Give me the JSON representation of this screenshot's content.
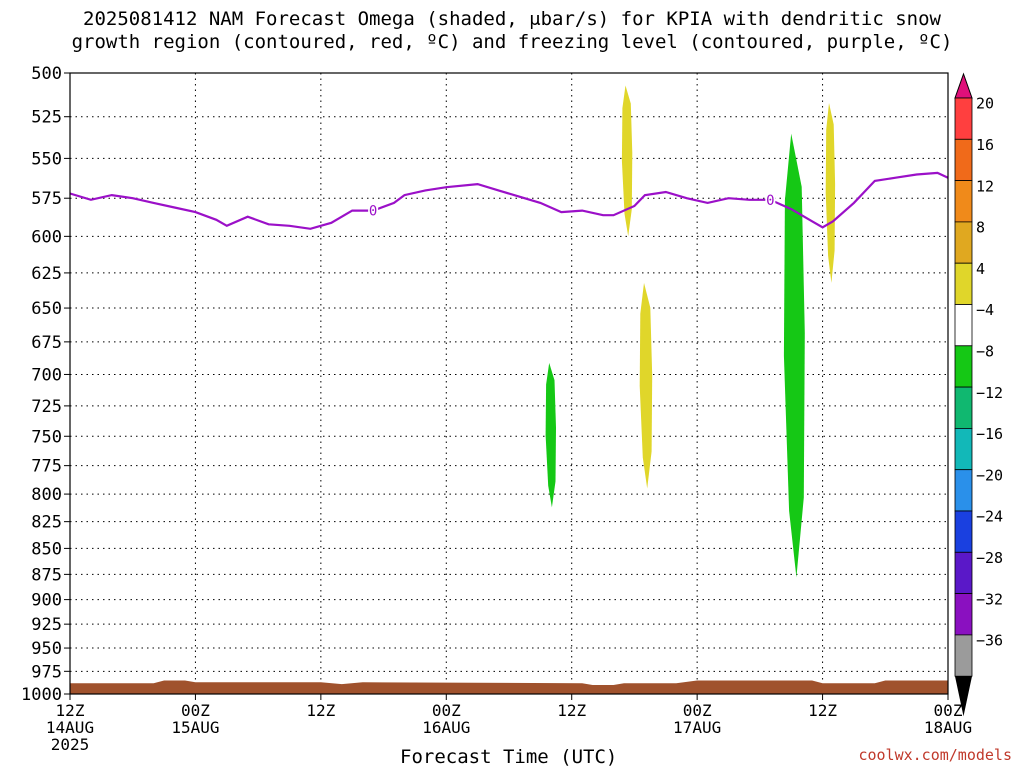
{
  "title_line1": "2025081412 NAM Forecast Omega (shaded, μbar/s) for KPIA with dendritic snow",
  "title_line2": "growth region (contoured, red, ºC) and freezing level (contoured, purple, ºC)",
  "credit": "coolwx.com/models",
  "colors": {
    "freezing_line": "#9b10c8",
    "terrain": "#a0522d",
    "yellow": "#e0d62a",
    "green": "#15c815",
    "grid": "#000000"
  },
  "chart_data": {
    "type": "heatmap",
    "xlabel": "Forecast Time (UTC)",
    "ylabel": "",
    "x_range_hours": [
      0,
      84
    ],
    "y_axis": "pressure (mb), inverted",
    "yticks": [
      500,
      525,
      550,
      575,
      600,
      625,
      650,
      675,
      700,
      725,
      750,
      775,
      800,
      825,
      850,
      875,
      900,
      925,
      950,
      975,
      1000
    ],
    "xticks": [
      {
        "hour": 0,
        "label": "12Z",
        "sub": "14AUG",
        "sub2": "2025"
      },
      {
        "hour": 12,
        "label": "00Z",
        "sub": "15AUG"
      },
      {
        "hour": 24,
        "label": "12Z"
      },
      {
        "hour": 36,
        "label": "00Z",
        "sub": "16AUG"
      },
      {
        "hour": 48,
        "label": "12Z"
      },
      {
        "hour": 60,
        "label": "00Z",
        "sub": "17AUG"
      },
      {
        "hour": 72,
        "label": "12Z"
      },
      {
        "hour": 84,
        "label": "00Z",
        "sub": "18AUG"
      }
    ],
    "grid": "dotted",
    "freezing_level": {
      "name": "freezing level",
      "label": "0",
      "label_hours": [
        29,
        67
      ],
      "points": [
        [
          0,
          572
        ],
        [
          2,
          576
        ],
        [
          4,
          573
        ],
        [
          6,
          575
        ],
        [
          8,
          578
        ],
        [
          10,
          581
        ],
        [
          12,
          584
        ],
        [
          14,
          589
        ],
        [
          15,
          593
        ],
        [
          17,
          587
        ],
        [
          19,
          592
        ],
        [
          21,
          593
        ],
        [
          23,
          595
        ],
        [
          25,
          591
        ],
        [
          27,
          583
        ],
        [
          29,
          583
        ],
        [
          31,
          578
        ],
        [
          32,
          573
        ],
        [
          34,
          570
        ],
        [
          36,
          568
        ],
        [
          39,
          566
        ],
        [
          41,
          570
        ],
        [
          43,
          574
        ],
        [
          45,
          578
        ],
        [
          47,
          584
        ],
        [
          49,
          583
        ],
        [
          51,
          586
        ],
        [
          52,
          586
        ],
        [
          54,
          580
        ],
        [
          55,
          573
        ],
        [
          57,
          571
        ],
        [
          59,
          575
        ],
        [
          61,
          578
        ],
        [
          63,
          575
        ],
        [
          65,
          576
        ],
        [
          67,
          576
        ],
        [
          69,
          582
        ],
        [
          71,
          590
        ],
        [
          72,
          594
        ],
        [
          73,
          590
        ],
        [
          75,
          578
        ],
        [
          77,
          564
        ],
        [
          79,
          562
        ],
        [
          81,
          560
        ],
        [
          83,
          559
        ],
        [
          84,
          562
        ]
      ]
    },
    "omega_regions": [
      {
        "value": "4 to 8",
        "color": "#e0d62a",
        "hours": [
          52.8,
          53.8
        ],
        "top_mb": 507,
        "bottom_mb": 600
      },
      {
        "value": "4 to 8",
        "color": "#e0d62a",
        "hours": [
          54.5,
          55.7
        ],
        "top_mb": 632,
        "bottom_mb": 795
      },
      {
        "value": "4 to 8",
        "color": "#e0d62a",
        "hours": [
          72.3,
          73.2
        ],
        "top_mb": 517,
        "bottom_mb": 632
      },
      {
        "value": "-8 to -4",
        "color": "#15c815",
        "hours": [
          45.5,
          46.5
        ],
        "top_mb": 691,
        "bottom_mb": 812
      },
      {
        "value": "-8 to -4",
        "color": "#15c815",
        "hours": [
          68.3,
          70.3
        ],
        "top_mb": 535,
        "bottom_mb": 878
      }
    ],
    "colorbar": {
      "labels": [
        20,
        16,
        12,
        8,
        4,
        -4,
        -8,
        -12,
        -16,
        -20,
        -24,
        -28,
        -32,
        -36
      ],
      "colors": [
        "#ff3f3f",
        "#f06a1a",
        "#f08a1a",
        "#e0a820",
        "#e0d62a",
        "#ffffff",
        "#15c815",
        "#10b870",
        "#12b8b8",
        "#2a90ea",
        "#1a40e0",
        "#5a18c8",
        "#8a10c0",
        "#9b9b9b"
      ],
      "top_arrow": "#e0107a",
      "bottom_arrow": "#000000"
    }
  }
}
